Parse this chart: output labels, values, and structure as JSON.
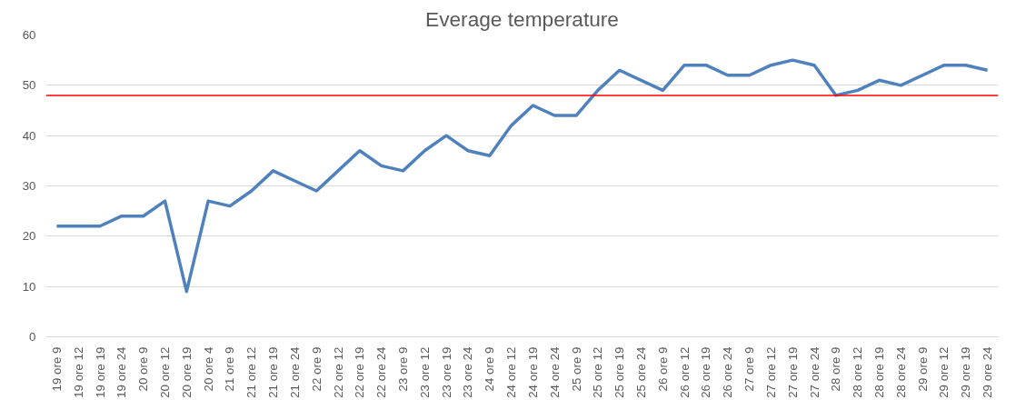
{
  "chart_data": {
    "type": "line",
    "title": "Everage temperature",
    "categories": [
      "19 ore 9",
      "19 ore 12",
      "19 ore 19",
      "19 ore 24",
      "20 ore 9",
      "20 ore 12",
      "20 ore 19",
      "20 ore 4",
      "21 ore 9",
      "21 ore 12",
      "21 ore 19",
      "21 ore 24",
      "22 ore 9",
      "22 ore 12",
      "22 ore 19",
      "22 ore 24",
      "23 ore 9",
      "23 ore 12",
      "23 ore 19",
      "23 ore 24",
      "24 ore 9",
      "24 ore 12",
      "24 ore 19",
      "24 ore 24",
      "25 ore 9",
      "25 ore 12",
      "25 ore 19",
      "25 ore 24",
      "26 ore 9",
      "26 ore 12",
      "26 ore 19",
      "26 ore 24",
      "27 ore 9",
      "27 ore 12",
      "27 ore 19",
      "27 ore 24",
      "28 ore 9",
      "28 ore 12",
      "28 ore 19",
      "28 ore 24",
      "29 ore 9",
      "29 ore 12",
      "29 ore 19",
      "29 ore 24"
    ],
    "series": [
      {
        "color": "#4f81bd",
        "values": [
          22,
          22,
          22,
          24,
          24,
          27,
          9,
          27,
          26,
          29,
          33,
          31,
          29,
          33,
          37,
          34,
          33,
          37,
          40,
          37,
          36,
          42,
          46,
          44,
          44,
          49,
          53,
          51,
          49,
          54,
          54,
          52,
          52,
          54,
          55,
          54,
          48,
          49,
          51,
          50,
          52,
          54,
          54,
          53
        ]
      }
    ],
    "ylim": [
      0,
      60
    ],
    "yticks": [
      0,
      10,
      20,
      30,
      40,
      50,
      60
    ],
    "grid": "y",
    "marker": "none",
    "line_style": "solid",
    "ref_lines": [
      {
        "axis": "y",
        "value": 48,
        "color": "#ff0000"
      }
    ]
  }
}
